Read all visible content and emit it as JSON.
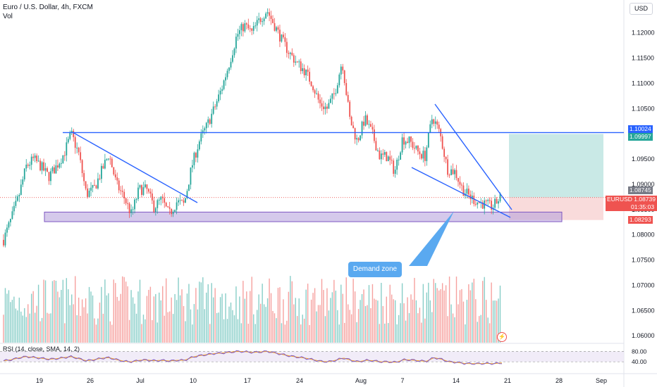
{
  "header": {
    "title": "Euro / U.S. Dollar, 4h, FXCM",
    "volume_label": "Vol"
  },
  "currency_button": "USD",
  "rsi_label": "RSI (14, close, SMA, 14, 2)",
  "annotation": "Demand zone",
  "colors": {
    "up": "#26a69a",
    "down": "#ef5350",
    "line": "#2962ff",
    "zone": "#b39ddb",
    "rsi": "#7e57c2",
    "target": "#b2dfdb",
    "stop": "#f8d7d7"
  },
  "chart_data": {
    "type": "candlestick",
    "symbol": "EURUSD",
    "price_axis": {
      "ticks": [
        "1.12000",
        "1.11500",
        "1.11000",
        "1.10500",
        "1.09500",
        "1.09000",
        "1.08500",
        "1.08000",
        "1.07500",
        "1.07000",
        "1.06500",
        "1.06000"
      ],
      "range": [
        1.0585,
        1.1265
      ]
    },
    "time_axis": {
      "ticks": [
        "19",
        "26",
        "Jul",
        "10",
        "17",
        "24",
        "Aug",
        "7",
        "14",
        "21",
        "28",
        "Sep"
      ]
    },
    "price_labels": [
      {
        "value": "1.10024",
        "color": "#2962ff"
      },
      {
        "value": "1.09997",
        "color": "#26a69a"
      },
      {
        "value": "1.08745",
        "color": "#787b86"
      },
      {
        "symbol": "EURUSD",
        "value": "1.08739",
        "countdown": "01:35:03",
        "color": "#ef5350"
      },
      {
        "value": "1.08293",
        "color": "#ef5350"
      }
    ],
    "close_path": [
      1.079,
      1.083,
      1.0875,
      1.0935,
      1.095,
      1.0935,
      1.0915,
      1.0935,
      1.096,
      1.1,
      1.096,
      1.088,
      1.089,
      1.0925,
      1.096,
      1.09,
      1.0875,
      1.084,
      1.089,
      1.089,
      1.0855,
      1.087,
      1.084,
      1.0865,
      1.086,
      1.0935,
      1.0985,
      1.1015,
      1.105,
      1.109,
      1.114,
      1.1195,
      1.1215,
      1.12,
      1.1225,
      1.1245,
      1.1215,
      1.1185,
      1.116,
      1.114,
      1.1125,
      1.11,
      1.106,
      1.105,
      1.108,
      1.1145,
      1.103,
      1.0985,
      1.103,
      1.1,
      1.0955,
      1.0955,
      1.0925,
      1.099,
      1.0985,
      1.0965,
      1.0955,
      1.1035,
      1.1,
      1.093,
      1.0925,
      1.089,
      1.0875,
      1.0865,
      1.086,
      1.0855,
      1.0874
    ],
    "rsi_ticks": [
      "80.00",
      "40.00"
    ],
    "rsi_path": [
      44,
      48,
      55,
      60,
      57,
      54,
      50,
      52,
      56,
      60,
      52,
      44,
      48,
      54,
      56,
      48,
      42,
      40,
      46,
      47,
      44,
      46,
      43,
      46,
      46,
      58,
      64,
      68,
      72,
      74,
      77,
      80,
      79,
      76,
      78,
      80,
      74,
      68,
      62,
      58,
      54,
      48,
      42,
      40,
      46,
      55,
      46,
      40,
      46,
      44,
      40,
      40,
      38,
      48,
      47,
      44,
      42,
      56,
      50,
      40,
      38,
      34,
      33,
      33,
      34,
      33,
      36
    ],
    "drawings": {
      "resistance_line": 1.10024,
      "demand_zone": [
        1.0826,
        1.0845
      ],
      "long_position": {
        "entry": 1.08739,
        "target": 1.09997,
        "stop": 1.08293
      }
    }
  }
}
